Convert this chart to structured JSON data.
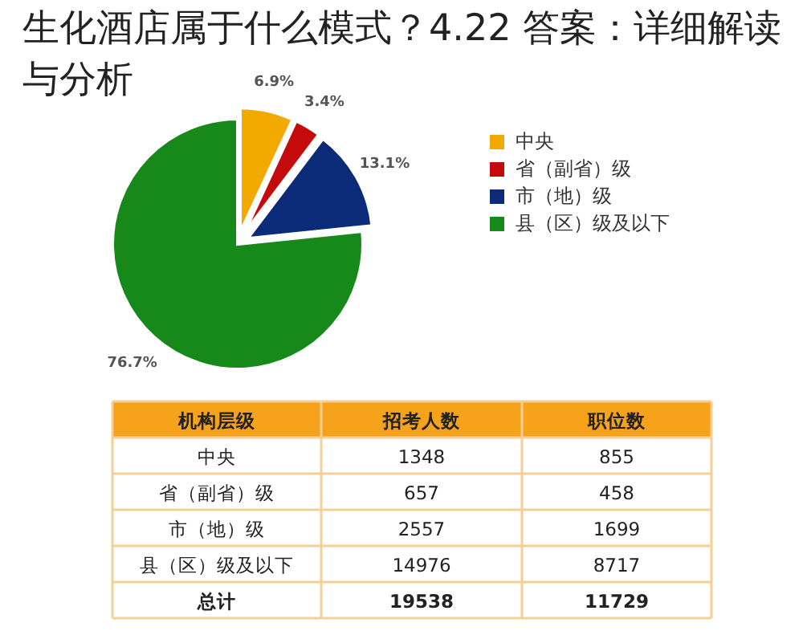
{
  "chart_data": [
    {
      "type": "pie",
      "title": "生化酒店属于什么模式？4.22 答案：详细解读与分析",
      "categories": [
        "中央",
        "省（副省）级",
        "市（地）级",
        "县（区）级及以下"
      ],
      "values": [
        6.9,
        3.4,
        13.1,
        76.7
      ],
      "colors": [
        "#f2a900",
        "#c40a0a",
        "#0b2a78",
        "#16891a"
      ],
      "value_labels": [
        "6.9%",
        "3.4%",
        "13.1%",
        "76.7%"
      ],
      "legend": "right"
    },
    {
      "type": "other",
      "xlabel": "机构层级",
      "categories": [
        "中央",
        "省（副省）级",
        "市（地）级",
        "县（区）级及以下",
        "总计"
      ],
      "series": [
        {
          "name": "招考人数",
          "values": [
            1348,
            657,
            2557,
            14976,
            19538
          ]
        },
        {
          "name": "职位数",
          "values": [
            855,
            458,
            1699,
            8717,
            11729
          ]
        }
      ],
      "data_labels": true
    }
  ]
}
